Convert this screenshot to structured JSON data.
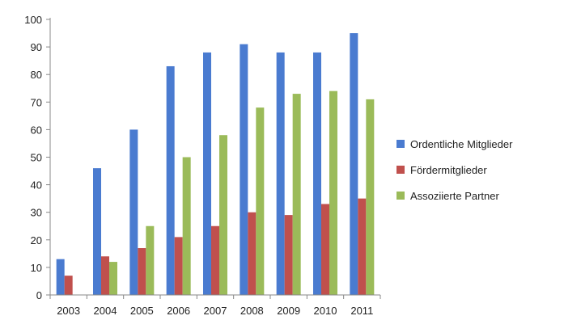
{
  "chart_data": {
    "type": "bar",
    "categories": [
      "2003",
      "2004",
      "2005",
      "2006",
      "2007",
      "2008",
      "2009",
      "2010",
      "2011"
    ],
    "series": [
      {
        "name": "Ordentliche Mitglieder",
        "color": "#4a7bd0",
        "values": [
          13,
          46,
          60,
          83,
          88,
          91,
          88,
          88,
          95
        ]
      },
      {
        "name": "Fördermitglieder",
        "color": "#c0504d",
        "values": [
          7,
          14,
          17,
          21,
          25,
          30,
          29,
          33,
          35
        ]
      },
      {
        "name": "Assoziierte Partner",
        "color": "#9bbb59",
        "values": [
          0,
          12,
          25,
          50,
          58,
          68,
          73,
          74,
          71
        ]
      }
    ],
    "ylim": [
      0,
      100
    ],
    "yticks": [
      "0",
      "10",
      "20",
      "30",
      "40",
      "50",
      "60",
      "70",
      "80",
      "90",
      "100"
    ],
    "grid": false,
    "legend": "right"
  }
}
